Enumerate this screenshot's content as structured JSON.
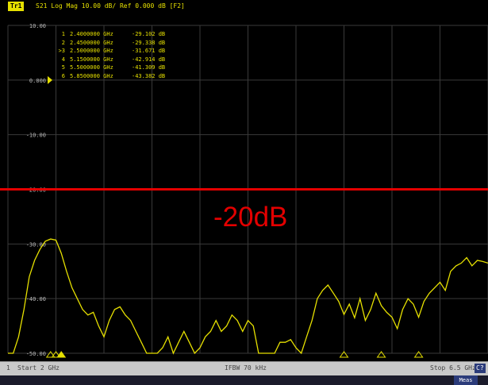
{
  "header": {
    "trace_badge": "Tr1",
    "title": "S21 Log Mag 10.00 dB/ Ref 0.000 dB [F2]"
  },
  "y_axis": {
    "ticks": [
      "10.00",
      "0.000",
      "-10.00",
      "-20.00",
      "-30.00",
      "-40.00",
      "-50.00"
    ],
    "ref_marker": "0.000"
  },
  "marker_table": [
    {
      "id": "1",
      "freq": "2.4000000 GHz",
      "value": "-29.102 dB"
    },
    {
      "id": "2",
      "freq": "2.4500000 GHz",
      "value": "-29.338 dB"
    },
    {
      "id": ">3",
      "freq": "2.5000000 GHz",
      "value": "-31.671 dB"
    },
    {
      "id": "4",
      "freq": "5.1500000 GHz",
      "value": "-42.914 dB"
    },
    {
      "id": "5",
      "freq": "5.5000000 GHz",
      "value": "-41.309 dB"
    },
    {
      "id": "6",
      "freq": "5.8500000 GHz",
      "value": "-43.382 dB"
    }
  ],
  "annotation": {
    "label": "-20dB",
    "level_db": -20,
    "color": "#e30000"
  },
  "footer": {
    "channel": "1",
    "start": "Start 2 GHz",
    "ifbw": "IFBW 70 kHz",
    "stop": "Stop 6.5 GHz",
    "stop_badge": "C?"
  },
  "status": {
    "button": "Meas"
  },
  "colors": {
    "trace": "#e6e000",
    "grid": "#3a3a3a",
    "background": "#000000"
  },
  "chart_data": {
    "type": "line",
    "title": "S21 Log Mag 10.00 dB/ Ref 0.000 dB",
    "xlabel": "",
    "ylabel": "",
    "xlim": [
      2.0,
      6.5
    ],
    "ylim": [
      -50,
      10
    ],
    "grid": true,
    "series": [
      {
        "name": "S21",
        "x": [
          2.0,
          2.05,
          2.1,
          2.15,
          2.2,
          2.25,
          2.3,
          2.35,
          2.4,
          2.45,
          2.5,
          2.55,
          2.6,
          2.65,
          2.7,
          2.75,
          2.8,
          2.85,
          2.9,
          2.95,
          3.0,
          3.05,
          3.1,
          3.15,
          3.2,
          3.25,
          3.3,
          3.35,
          3.4,
          3.45,
          3.5,
          3.55,
          3.6,
          3.65,
          3.7,
          3.75,
          3.8,
          3.85,
          3.9,
          3.95,
          4.0,
          4.05,
          4.1,
          4.15,
          4.2,
          4.25,
          4.3,
          4.35,
          4.4,
          4.45,
          4.5,
          4.55,
          4.6,
          4.65,
          4.7,
          4.75,
          4.8,
          4.85,
          4.9,
          4.95,
          5.0,
          5.05,
          5.1,
          5.15,
          5.2,
          5.25,
          5.3,
          5.35,
          5.4,
          5.45,
          5.5,
          5.55,
          5.6,
          5.65,
          5.7,
          5.75,
          5.8,
          5.85,
          5.9,
          5.95,
          6.0,
          6.05,
          6.1,
          6.15,
          6.2,
          6.25,
          6.3,
          6.35,
          6.4,
          6.45,
          6.5
        ],
        "values": [
          -50,
          -50,
          -47,
          -42,
          -36,
          -33,
          -31,
          -29.5,
          -29.1,
          -29.3,
          -31.7,
          -35,
          -38,
          -40,
          -42,
          -43,
          -42.5,
          -45,
          -47,
          -44,
          -42,
          -41.5,
          -43,
          -44,
          -46,
          -48,
          -50,
          -50,
          -50,
          -49,
          -47,
          -50,
          -48,
          -46,
          -48,
          -50,
          -49,
          -47,
          -46,
          -44,
          -46,
          -45,
          -43,
          -44,
          -46,
          -44,
          -45,
          -50,
          -50,
          -50,
          -50,
          -48,
          -48,
          -47.5,
          -49,
          -50,
          -47,
          -44,
          -40,
          -38.5,
          -37.5,
          -39,
          -40.5,
          -42.9,
          -41,
          -43.5,
          -40,
          -44,
          -42,
          -39,
          -41.3,
          -42.5,
          -43.4,
          -45.5,
          -42,
          -40,
          -41,
          -43.4,
          -40.5,
          -39,
          -38,
          -37,
          -38.5,
          -35,
          -34,
          -33.5,
          -32.5,
          -34,
          -33,
          -33.2,
          -33.5
        ]
      }
    ],
    "markers": [
      {
        "id": "1",
        "x": 2.4,
        "y": -29.102
      },
      {
        "id": "2",
        "x": 2.45,
        "y": -29.338
      },
      {
        "id": "3",
        "x": 2.5,
        "y": -31.671
      },
      {
        "id": "4",
        "x": 5.15,
        "y": -42.914
      },
      {
        "id": "5",
        "x": 5.5,
        "y": -41.309
      },
      {
        "id": "6",
        "x": 5.85,
        "y": -43.382
      }
    ]
  }
}
